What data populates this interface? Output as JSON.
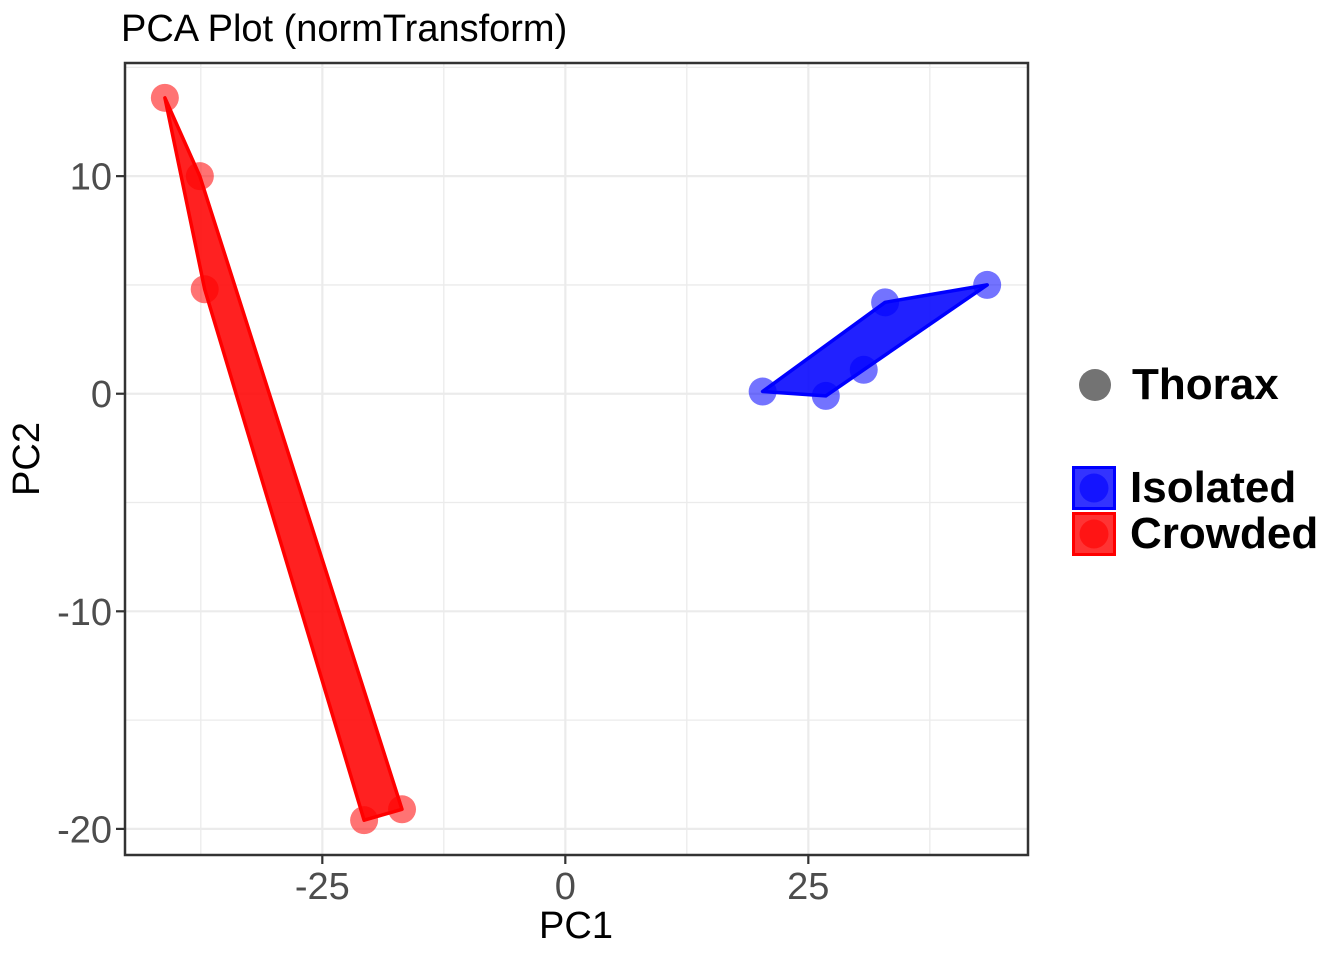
{
  "title": "PCA Plot (normTransform)",
  "axes": {
    "x_label": "PC1",
    "y_label": "PC2"
  },
  "legend": {
    "shape_item": {
      "label": "Thorax",
      "color": "#737373"
    },
    "groups": [
      {
        "label": "Isolated",
        "color": "#0000ff"
      },
      {
        "label": "Crowded",
        "color": "#ff0000"
      }
    ]
  },
  "chart_data": {
    "type": "scatter",
    "title": "PCA Plot (normTransform)",
    "xlabel": "PC1",
    "ylabel": "PC2",
    "xlim": [
      -45.3,
      47.6
    ],
    "ylim": [
      -21.2,
      15.2
    ],
    "x_ticks_major": [
      -25,
      0,
      25
    ],
    "x_ticks_minor": [
      -37.5,
      -12.5,
      12.5,
      37.5
    ],
    "y_ticks_major": [
      -20,
      -10,
      0,
      10
    ],
    "y_ticks_minor": [
      -15,
      -5,
      5,
      15
    ],
    "grid": true,
    "legend_position": "right",
    "point_legend_label": "Thorax",
    "series": [
      {
        "name": "Crowded",
        "color": "#ff0000",
        "hull": true,
        "points": [
          [
            -41.2,
            13.6
          ],
          [
            -37.6,
            10.0
          ],
          [
            -37.1,
            4.8
          ],
          [
            -20.7,
            -19.6
          ],
          [
            -16.8,
            -19.1
          ]
        ]
      },
      {
        "name": "Isolated",
        "color": "#0000ff",
        "hull": true,
        "points": [
          [
            20.3,
            0.1
          ],
          [
            26.8,
            -0.1
          ],
          [
            30.7,
            1.1
          ],
          [
            32.9,
            4.2
          ],
          [
            43.4,
            5.0
          ]
        ]
      }
    ],
    "styles": {
      "point_radius": 14,
      "point_alpha": 0.55,
      "hull_fill_alpha": 0.87,
      "hull_stroke_width": 3.5,
      "grid_color": "#ebebeb",
      "border_color": "#333333",
      "tick_label_color": "#4d4d4d",
      "tick_font_size": 38
    }
  }
}
